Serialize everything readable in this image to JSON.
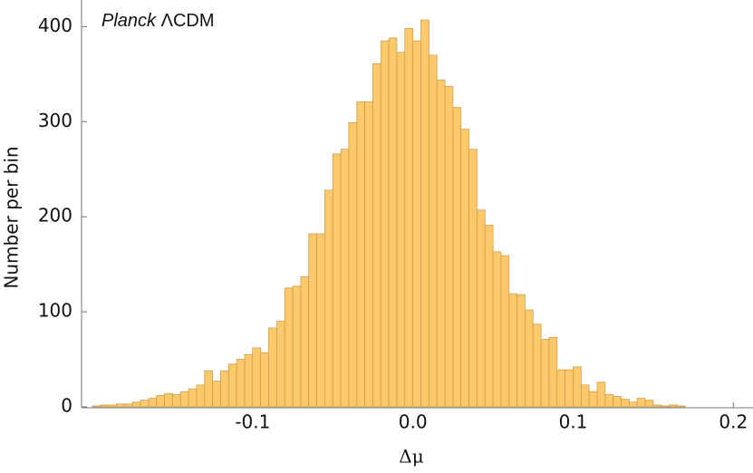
{
  "chart_data": {
    "type": "histogram",
    "annotation": {
      "italic": "Planck",
      "rest": "ΛCDM"
    },
    "xlabel": "Δμ",
    "ylabel": "Number per bin",
    "bins": [
      -0.2,
      -0.195,
      -0.19,
      -0.185,
      -0.18,
      -0.175,
      -0.17,
      -0.165,
      -0.16,
      -0.155,
      -0.15,
      -0.145,
      -0.14,
      -0.135,
      -0.13,
      -0.125,
      -0.12,
      -0.115,
      -0.11,
      -0.105,
      -0.1,
      -0.095,
      -0.09,
      -0.085,
      -0.08,
      -0.075,
      -0.07,
      -0.065,
      -0.06,
      -0.055,
      -0.05,
      -0.045,
      -0.04,
      -0.035,
      -0.03,
      -0.025,
      -0.02,
      -0.015,
      -0.01,
      -0.005,
      0,
      0.005,
      0.01,
      0.015,
      0.02,
      0.025,
      0.03,
      0.035,
      0.04,
      0.045,
      0.05,
      0.055,
      0.06,
      0.065,
      0.07,
      0.075,
      0.08,
      0.085,
      0.09,
      0.095,
      0.1,
      0.105,
      0.11,
      0.115,
      0.12,
      0.125,
      0.13,
      0.135,
      0.14,
      0.145,
      0.15,
      0.155,
      0.16,
      0.165,
      0.17
    ],
    "values": [
      1,
      2,
      2,
      3,
      3,
      5,
      7,
      9,
      12,
      14,
      13,
      16,
      19,
      23,
      38,
      27,
      38,
      45,
      50,
      55,
      62,
      57,
      83,
      90,
      125,
      127,
      137,
      182,
      182,
      228,
      266,
      271,
      299,
      321,
      321,
      361,
      385,
      388,
      373,
      398,
      385,
      407,
      370,
      344,
      337,
      315,
      292,
      271,
      207,
      191,
      163,
      159,
      119,
      118,
      102,
      87,
      71,
      73,
      39,
      39,
      42,
      23,
      16,
      26,
      13,
      11,
      8,
      5,
      9,
      7,
      2,
      1,
      2,
      1
    ],
    "color": "#fdc96a",
    "edgecolor": "#c9a052",
    "xlim": [
      -0.2,
      0.21
    ],
    "ylim": [
      0,
      428
    ],
    "xticks": [
      -0.1,
      {
        "value": 0,
        "label": "0.0"
      },
      0.1,
      0.2
    ],
    "yticks": [
      0,
      100,
      200,
      300,
      400
    ]
  }
}
